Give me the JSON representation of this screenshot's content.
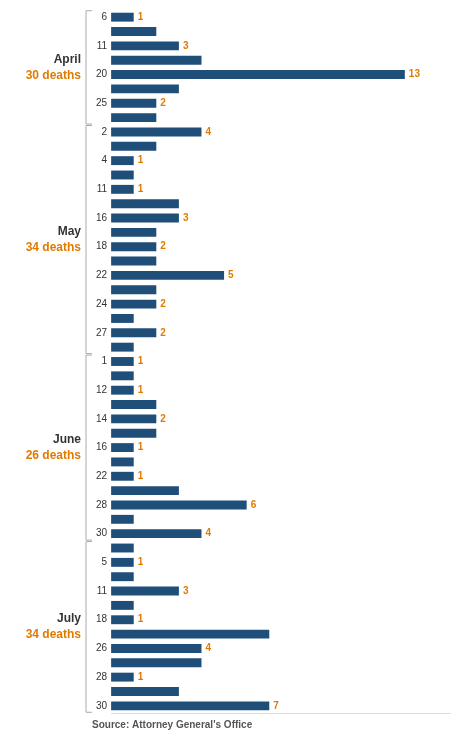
{
  "chart_data": {
    "type": "bar",
    "orientation": "horizontal",
    "categories": [
      "6",
      null,
      "11",
      null,
      "20",
      null,
      "25",
      null,
      "2",
      null,
      "4",
      null,
      "11",
      null,
      "16",
      null,
      "18",
      null,
      "22",
      null,
      "24",
      null,
      "27",
      null,
      "1",
      null,
      "12",
      null,
      "14",
      null,
      "16",
      null,
      "22",
      null,
      "28",
      null,
      "30",
      null,
      "5",
      null,
      "11",
      null,
      "18",
      null,
      "26",
      null,
      "28",
      null,
      "30"
    ],
    "values": [
      1,
      2,
      3,
      4,
      13,
      3,
      2,
      2,
      4,
      2,
      1,
      1,
      1,
      3,
      3,
      2,
      2,
      2,
      5,
      2,
      2,
      1,
      2,
      1,
      1,
      1,
      1,
      2,
      2,
      2,
      1,
      1,
      1,
      3,
      6,
      1,
      4,
      1,
      1,
      1,
      3,
      1,
      1,
      7,
      4,
      4,
      1,
      3,
      7
    ],
    "value_labels": [
      "1",
      null,
      "3",
      null,
      "13",
      null,
      "2",
      null,
      "4",
      null,
      "1",
      null,
      "1",
      null,
      "3",
      null,
      "2",
      null,
      "5",
      null,
      "2",
      null,
      "2",
      null,
      "1",
      null,
      "1",
      null,
      "2",
      null,
      "1",
      null,
      "1",
      null,
      "6",
      null,
      "4",
      null,
      "1",
      null,
      "3",
      null,
      "1",
      null,
      "4",
      null,
      "1",
      null,
      "7"
    ],
    "data_labels": true,
    "bar_groups": [
      "April",
      "April",
      "April",
      "April",
      "April",
      "April",
      "April",
      "April",
      "May",
      "May",
      "May",
      "May",
      "May",
      "May",
      "May",
      "May",
      "May",
      "May",
      "May",
      "May",
      "May",
      "May",
      "May",
      "May",
      "June",
      "June",
      "June",
      "June",
      "June",
      "June",
      "June",
      "June",
      "June",
      "June",
      "June",
      "June",
      "June",
      "July",
      "July",
      "July",
      "July",
      "July",
      "July",
      "July",
      "July",
      "July",
      "July",
      "July",
      "July"
    ],
    "annotations": [
      {
        "title": "April",
        "text": "30 deaths"
      },
      {
        "title": "May",
        "text": "34 deaths"
      },
      {
        "title": "June",
        "text": "26 deaths"
      },
      {
        "title": "July",
        "text": "34 deaths"
      }
    ],
    "source": "Source: Attorney General's Office",
    "color": "#1f4e79",
    "label_color": "#e07b00",
    "text_color": "#333333",
    "xlim": [
      0,
      15
    ],
    "tick_labels": "y",
    "grid": false,
    "legend": false
  }
}
